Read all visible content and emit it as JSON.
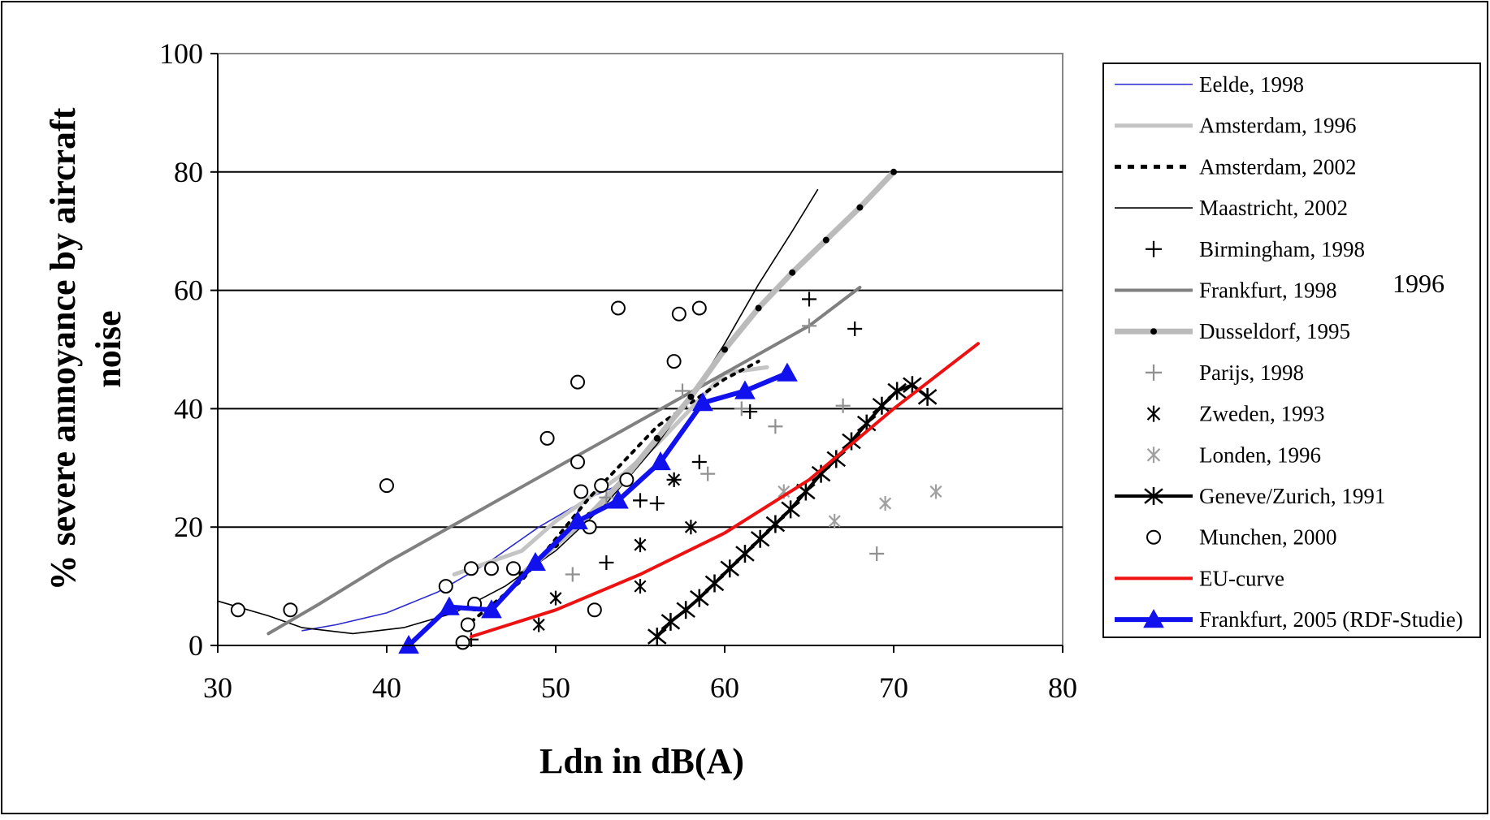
{
  "chart_data": {
    "type": "line",
    "title": "",
    "xlabel": "Ldn in dB(A)",
    "ylabel": "% severe annoyance by aircraft noise",
    "ylabel_lines": [
      "% severe annoyance by aircraft",
      "noise"
    ],
    "xlim": [
      30,
      80
    ],
    "ylim": [
      0,
      100
    ],
    "xticks": [
      "30",
      "40",
      "50",
      "60",
      "70",
      "80"
    ],
    "yticks": [
      "0",
      "20",
      "40",
      "60",
      "80",
      "100"
    ],
    "grid": "horizontal",
    "legend_position": "right",
    "annotation": "1996",
    "series": [
      {
        "name": "Eelde, 1998",
        "kind": "line",
        "color": "#2a2ad0",
        "width": 1.6,
        "x": [
          35,
          37,
          40,
          43,
          46,
          49,
          52,
          54.5
        ],
        "y": [
          2.5,
          3.5,
          5.5,
          9,
          14,
          20,
          25,
          28
        ]
      },
      {
        "name": "Amsterdam, 1996",
        "kind": "line",
        "color": "#c4c4c4",
        "width": 5,
        "x": [
          44,
          46,
          48,
          50,
          52,
          54,
          56,
          58,
          60,
          62.5
        ],
        "y": [
          12,
          14,
          16,
          21,
          25,
          29,
          34,
          40,
          46,
          47
        ]
      },
      {
        "name": "Amsterdam, 2002",
        "kind": "dotted",
        "color": "#000000",
        "width": 4,
        "x": [
          45,
          48,
          50,
          52,
          54,
          56,
          58,
          60,
          62
        ],
        "y": [
          4,
          11,
          18,
          25,
          31,
          37,
          41,
          45,
          48
        ]
      },
      {
        "name": "Maastricht, 2002",
        "kind": "line",
        "color": "#000000",
        "width": 1.6,
        "x": [
          30,
          33,
          35,
          38,
          41,
          44,
          47,
          50,
          53,
          56,
          58,
          60,
          62,
          64,
          65.5
        ],
        "y": [
          7.5,
          5,
          3,
          2,
          3,
          5.5,
          10,
          16,
          24,
          34,
          42,
          51,
          61,
          70,
          77
        ]
      },
      {
        "name": "Birmingham, 1998",
        "kind": "marker",
        "marker": "plus",
        "color": "#000000",
        "x": [
          45,
          53,
          55,
          56,
          57,
          58.5,
          61.5,
          65,
          67.7
        ],
        "y": [
          1,
          14,
          24.5,
          24,
          28,
          31,
          39.5,
          58.5,
          53.5
        ]
      },
      {
        "name": "Frankfurt, 1998",
        "kind": "line",
        "color": "#808080",
        "width": 4,
        "x": [
          33,
          36,
          40,
          45,
          50,
          55,
          60,
          65,
          68
        ],
        "y": [
          2,
          7,
          14,
          22,
          30,
          38,
          46,
          54,
          60.5
        ]
      },
      {
        "name": "Dusseldorf, 1995",
        "kind": "line-dots",
        "color": "#bbbbbb",
        "width": 7,
        "x": [
          48,
          50,
          52,
          54,
          56,
          58,
          60,
          62,
          64,
          66,
          68,
          70
        ],
        "y": [
          12,
          17,
          22,
          28,
          35,
          42,
          50,
          57,
          63,
          68.5,
          74,
          80
        ]
      },
      {
        "name": "Parijs, 1998",
        "kind": "marker",
        "marker": "plus",
        "color": "#909090",
        "x": [
          51,
          53,
          57.5,
          59,
          61,
          63,
          65,
          67,
          69
        ],
        "y": [
          12,
          25,
          43,
          29,
          40,
          37,
          54,
          40.5,
          15.5
        ]
      },
      {
        "name": "Zweden, 1993",
        "kind": "marker",
        "marker": "asterisk",
        "color": "#000000",
        "x": [
          49,
          50,
          55,
          55,
          57,
          58
        ],
        "y": [
          3.5,
          8,
          10,
          17,
          28,
          20
        ]
      },
      {
        "name": "Londen, 1996",
        "kind": "marker",
        "marker": "asterisk",
        "color": "#a0a0a0",
        "x": [
          63.5,
          66.5,
          69.5,
          72.5
        ],
        "y": [
          26,
          21,
          24,
          26
        ]
      },
      {
        "name": "Geneve/Zurich, 1991",
        "kind": "line-star",
        "color": "#000000",
        "width": 4,
        "x": [
          56,
          56.8,
          57.7,
          58.5,
          59.4,
          60.3,
          61.2,
          62.1,
          63,
          63.9,
          64.8,
          65.7,
          66.6,
          67.5,
          68.4,
          69.3,
          70.2,
          71.1,
          72
        ],
        "y": [
          1.5,
          4,
          6,
          8,
          10.5,
          13,
          15.5,
          18,
          20.5,
          23,
          26,
          29,
          31.5,
          34.5,
          37.5,
          40.5,
          43,
          44,
          42
        ]
      },
      {
        "name": "Munchen, 2000",
        "kind": "marker",
        "marker": "circle",
        "color": "#000000",
        "x": [
          31.2,
          34.3,
          40,
          43.5,
          45,
          46.2,
          44.8,
          44.5,
          45.2,
          47.5,
          49.5,
          51.3,
          51.3,
          51.5,
          52,
          52.7,
          52.3,
          53.7,
          54.2,
          57,
          57.3,
          58.5
        ],
        "y": [
          6,
          6,
          27,
          10,
          13,
          13,
          3.5,
          0.5,
          7,
          13,
          35,
          44.5,
          31,
          26,
          20,
          27,
          6,
          57,
          28,
          48,
          56,
          57
        ]
      },
      {
        "name": "EU-curve",
        "kind": "line",
        "color": "#ee1111",
        "width": 4,
        "x": [
          45,
          50,
          55,
          60,
          65,
          70,
          75
        ],
        "y": [
          1.5,
          6,
          12,
          19,
          28,
          40,
          51
        ]
      },
      {
        "name": "Frankfurt, 2005 (RDF-Studie)",
        "kind": "line-triangle",
        "color": "#1111ee",
        "width": 6,
        "x": [
          41.3,
          43.7,
          46.2,
          48.8,
          51.3,
          53.7,
          56.2,
          58.7,
          61.2,
          63.7
        ],
        "y": [
          0,
          6.5,
          6,
          14,
          21,
          24.5,
          31,
          41,
          43,
          46
        ]
      }
    ]
  }
}
